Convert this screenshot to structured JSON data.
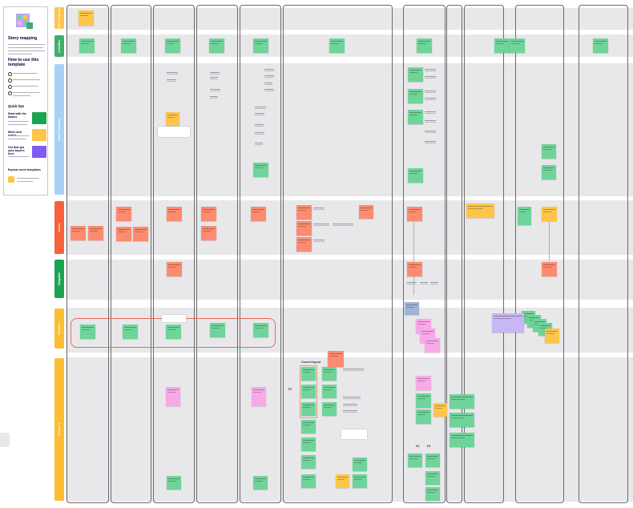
{
  "sidebar": {
    "title": "Story mapping",
    "how_to_heading": "How to use this template",
    "quick_tips_heading": "Quick tips",
    "tip1": "Start with the basics",
    "tip2": "Mixer and match",
    "tip3": "Get that get your buyers here",
    "explore": "Explore more templates",
    "logo_icon": "colorful-grid-icon"
  },
  "lanes": [
    {
      "id": "user-personas",
      "label": "User Personas",
      "color": "#fdc64a"
    },
    {
      "id": "activities",
      "label": "Activities",
      "color": "#3fae6b"
    },
    {
      "id": "tasks-problems",
      "label": "Tasks / Problems",
      "color": "#a8d2f5"
    },
    {
      "id": "issues",
      "label": "Issues",
      "color": "#f9603c"
    },
    {
      "id": "mitigation",
      "label": "Mitigation",
      "color": "#1aa351"
    },
    {
      "id": "release-1",
      "label": "Release 1",
      "color": "#fdbd32"
    },
    {
      "id": "release-2",
      "label": "Release 2",
      "color": "#fdbd32"
    }
  ],
  "annotations": {
    "current_layout": "Current layout",
    "p1": "P1",
    "p2": "P2",
    "p3": "P3"
  },
  "colors": {
    "sticky_green": "#6fd49a",
    "sticky_orange": "#fd8b70",
    "sticky_yellow": "#fdc64a",
    "sticky_pink": "#f8a9e8",
    "band_gray": "#e8e8ea"
  }
}
